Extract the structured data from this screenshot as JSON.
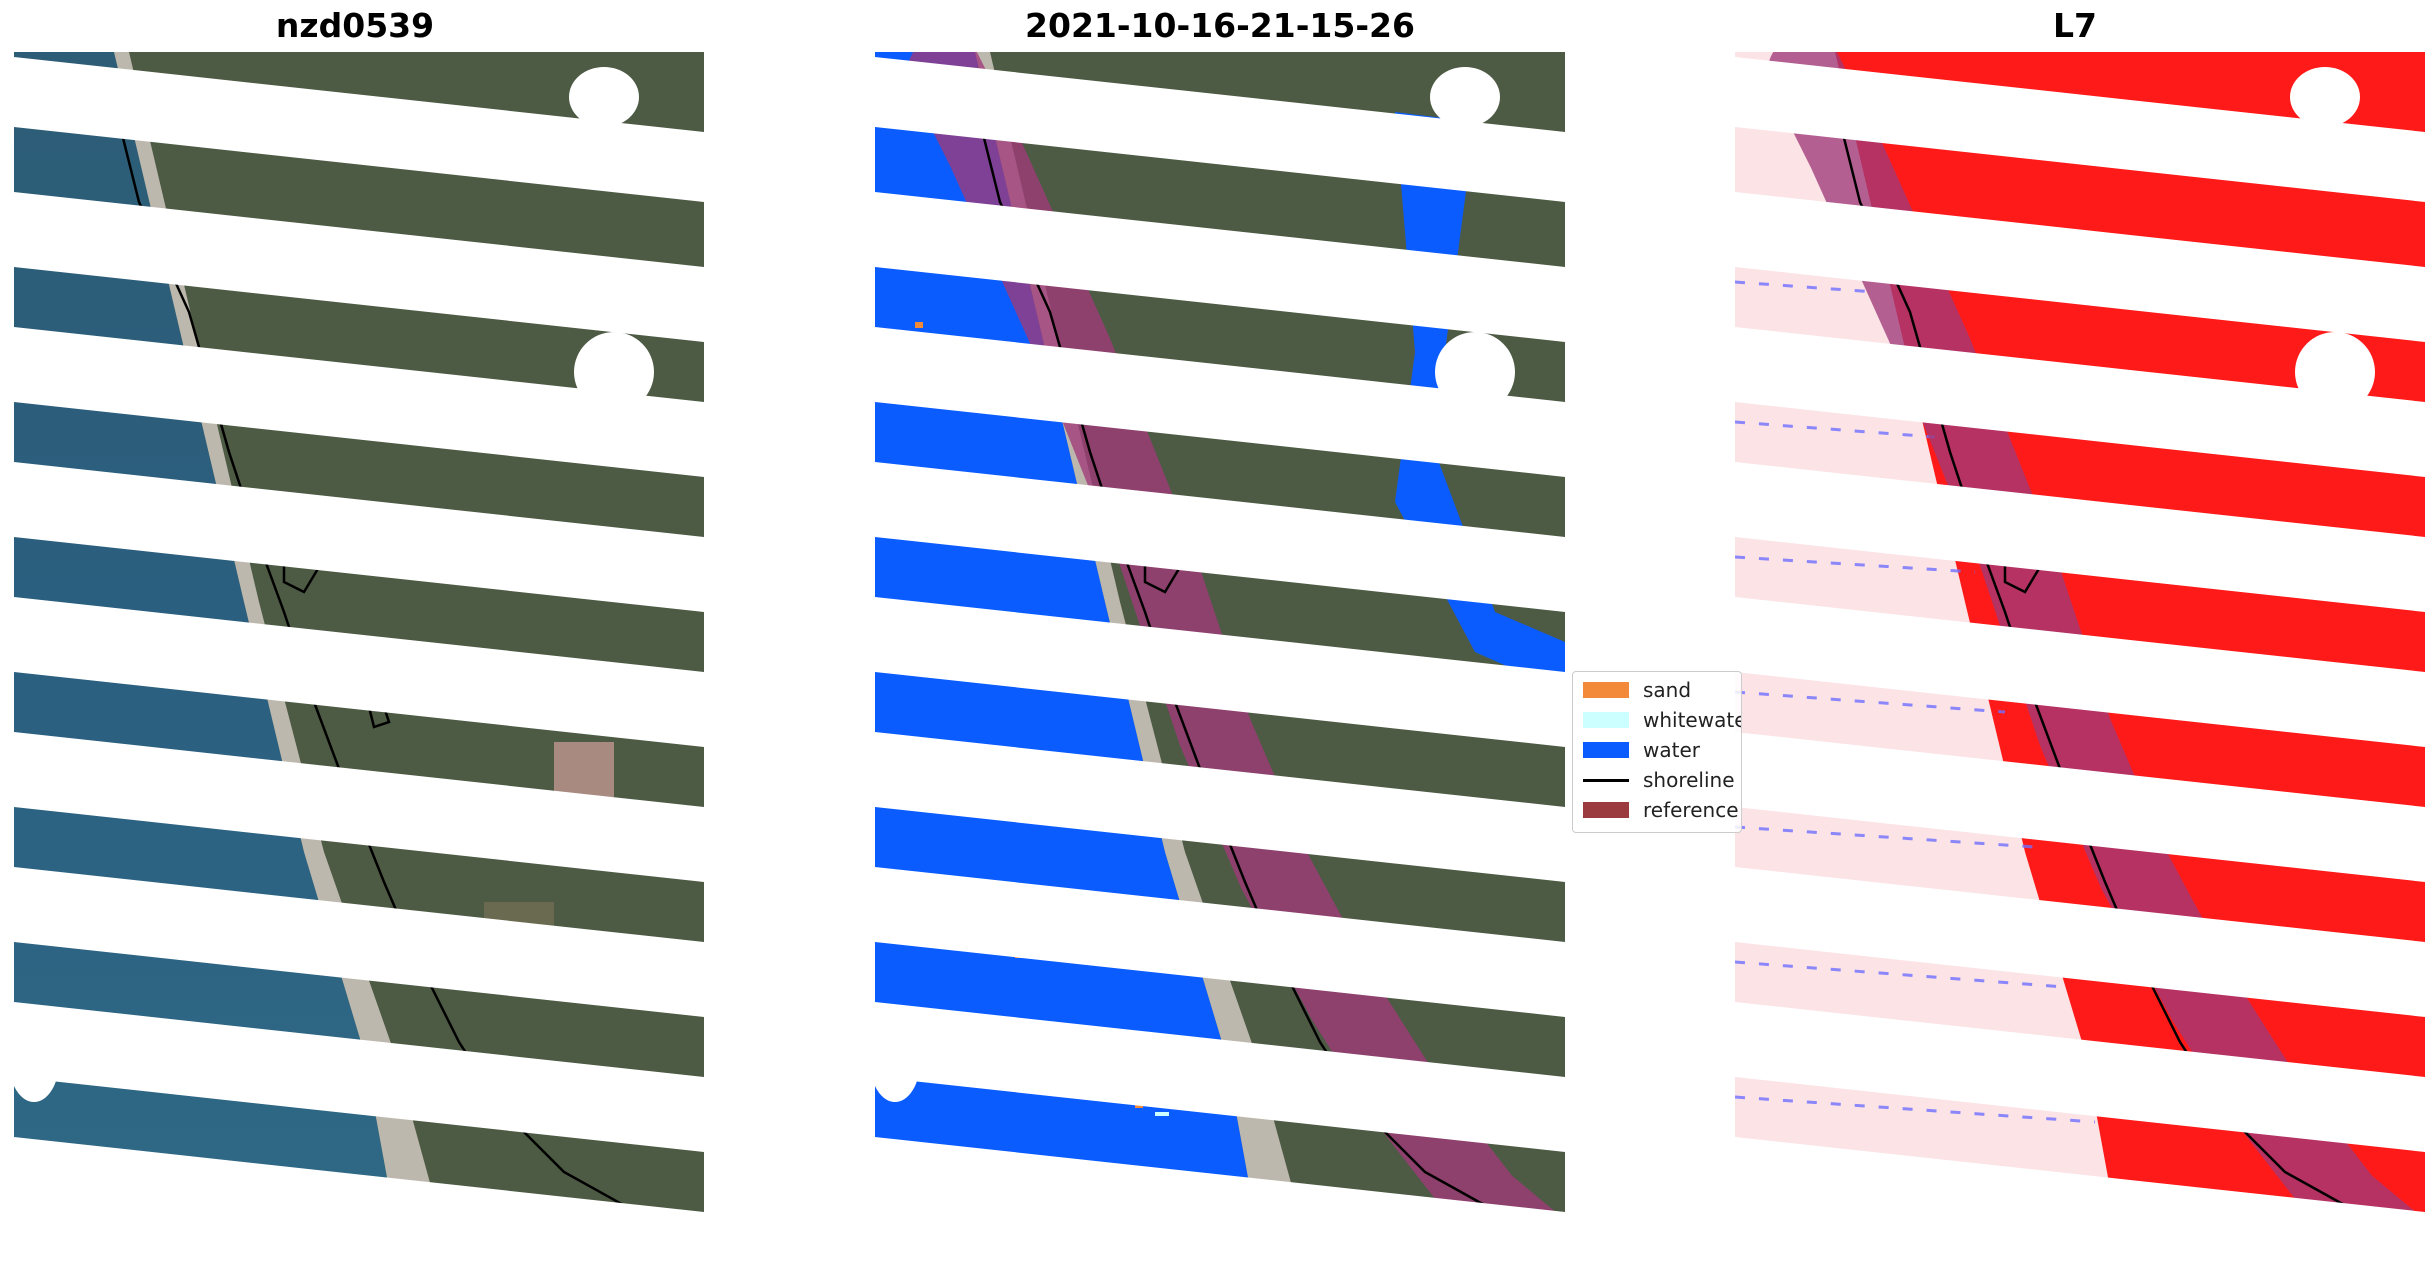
{
  "panels": [
    {
      "title": "nzd0539"
    },
    {
      "title": "2021-10-16-21-15-26"
    },
    {
      "title": "L7"
    }
  ],
  "legend": {
    "items": [
      {
        "label": "sand",
        "color": "#f28a3a"
      },
      {
        "label": "whitewater",
        "color": "#ccffff"
      },
      {
        "label": "water",
        "color": "#0a5cff"
      },
      {
        "label": "shoreline",
        "color": "#000000"
      },
      {
        "label": "reference",
        "color": "#9b3a3f"
      }
    ]
  },
  "colors": {
    "ocean": "#2b5f7a",
    "land": "#4f5a40",
    "beach": "#c8c2b8",
    "reference_band": "#a03a78",
    "index_positive": "#ff0000",
    "index_negative": "#4040ff"
  }
}
